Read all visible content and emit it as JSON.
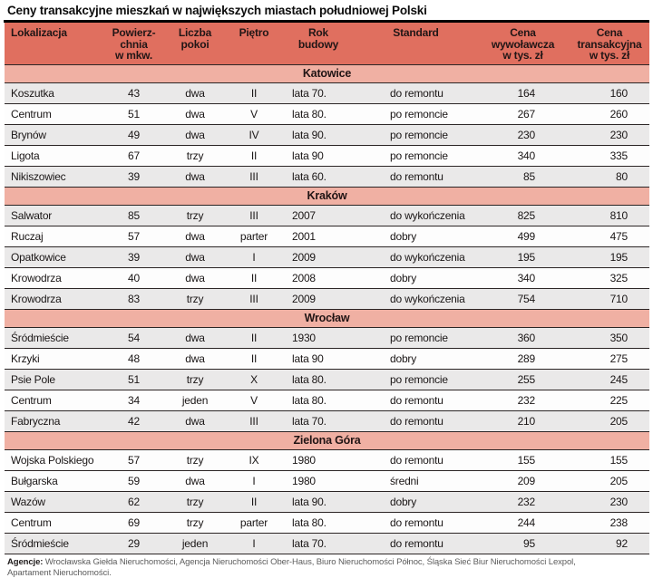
{
  "title": "Ceny transakcyjne mieszkań w największych miastach południowej Polski",
  "colors": {
    "header_bg": "#e06f5f",
    "section_bg": "#f0b0a3",
    "row_gray": "#eae9e9",
    "row_white": "#fdfdfd",
    "border": "#2b2525",
    "title_rule": "#000000"
  },
  "table": {
    "columns": [
      "Lokalizacja",
      "Powierz-\nchnia\nw mkw.",
      "Liczba\npokoi",
      "Piętro",
      "Rok\nbudowy",
      "Standard",
      "Cena\nwywoławcza\nw tys. zł",
      "Cena\ntransakcyjna\nw tys. zł"
    ],
    "sections": [
      {
        "name": "Katowice",
        "shades": [
          "gray",
          "white",
          "gray",
          "white",
          "gray"
        ],
        "rows": [
          [
            "Koszutka",
            "43",
            "dwa",
            "II",
            "lata 70.",
            "do remontu",
            "164",
            "160"
          ],
          [
            "Centrum",
            "51",
            "dwa",
            "V",
            "lata 80.",
            "po remoncie",
            "267",
            "260"
          ],
          [
            "Brynów",
            "49",
            "dwa",
            "IV",
            "lata 90.",
            "po remoncie",
            "230",
            "230"
          ],
          [
            "Ligota",
            "67",
            "trzy",
            "II",
            "lata 90",
            "po remoncie",
            "340",
            "335"
          ],
          [
            "Nikiszowiec",
            "39",
            "dwa",
            "III",
            "lata 60.",
            "do remontu",
            "85",
            "80"
          ]
        ]
      },
      {
        "name": "Kraków",
        "shades": [
          "gray",
          "white",
          "gray",
          "white",
          "gray"
        ],
        "rows": [
          [
            "Salwator",
            "85",
            "trzy",
            "III",
            "2007",
            "do wykończenia",
            "825",
            "810"
          ],
          [
            "Ruczaj",
            "57",
            "dwa",
            "parter",
            "2001",
            "dobry",
            "499",
            "475"
          ],
          [
            "Opatkowice",
            "39",
            "dwa",
            "I",
            "2009",
            "do wykończenia",
            "195",
            "195"
          ],
          [
            "Krowodrza",
            "40",
            "dwa",
            "II",
            "2008",
            "dobry",
            "340",
            "325"
          ],
          [
            "Krowodrza",
            "83",
            "trzy",
            "III",
            "2009",
            "do wykończenia",
            "754",
            "710"
          ]
        ]
      },
      {
        "name": "Wrocław",
        "shades": [
          "gray",
          "white",
          "gray",
          "white",
          "gray"
        ],
        "rows": [
          [
            "Śródmieście",
            "54",
            "dwa",
            "II",
            "1930",
            "po remoncie",
            "360",
            "350"
          ],
          [
            "Krzyki",
            "48",
            "dwa",
            "II",
            "lata 90",
            "dobry",
            "289",
            "275"
          ],
          [
            "Psie Pole",
            "51",
            "trzy",
            "X",
            "lata 80.",
            "po remoncie",
            "255",
            "245"
          ],
          [
            "Centrum",
            "34",
            "jeden",
            "V",
            "lata 80.",
            "do remontu",
            "232",
            "225"
          ],
          [
            "Fabryczna",
            "42",
            "dwa",
            "III",
            "lata 70.",
            "do remontu",
            "210",
            "205"
          ]
        ]
      },
      {
        "name": "Zielona Góra",
        "shades": [
          "white",
          "white",
          "gray",
          "white",
          "gray"
        ],
        "rows": [
          [
            "Wojska Polskiego",
            "57",
            "trzy",
            "IX",
            "1980",
            "do remontu",
            "155",
            "155"
          ],
          [
            "Bułgarska",
            "59",
            "dwa",
            "I",
            "1980",
            "średni",
            "209",
            "205"
          ],
          [
            "Wazów",
            "62",
            "trzy",
            "II",
            "lata 90.",
            "dobry",
            "232",
            "230"
          ],
          [
            "Centrum",
            "69",
            "trzy",
            "parter",
            "lata 80.",
            "do remontu",
            "244",
            "238"
          ],
          [
            "Śródmieście",
            "29",
            "jeden",
            "I",
            "lata 70.",
            "do remontu",
            "95",
            "92"
          ]
        ]
      }
    ]
  },
  "footer": {
    "label": "Agencje:",
    "text": "Wrocławska Giełda Nieruchomości, Agencja Nieruchomości Ober-Haus, Biuro Nieruchomości Północ, Śląska Sieć Biur Nieruchomości Lexpol,\nApartament Nieruchomości."
  }
}
